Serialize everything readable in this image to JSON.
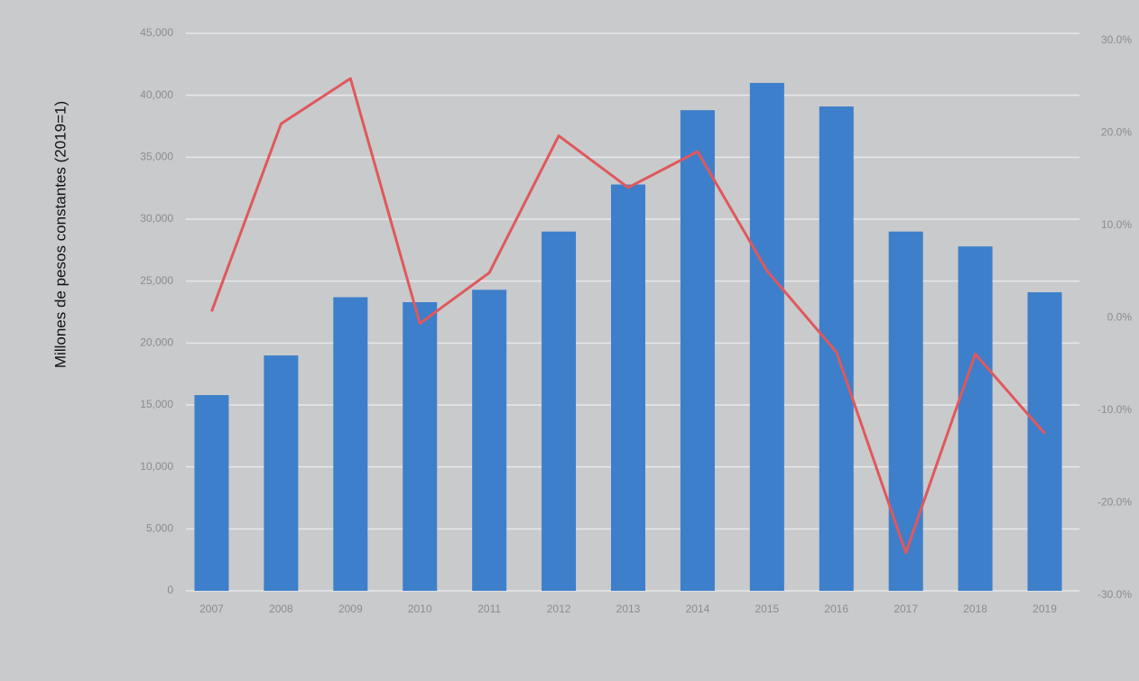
{
  "chart_data": {
    "type": "bar",
    "y_axis_label": "Millones de pesos constantes  (2019=1)",
    "categories": [
      "2007",
      "2008",
      "2009",
      "2010",
      "2011",
      "2012",
      "2013",
      "2014",
      "2015",
      "2016",
      "2017",
      "2018",
      "2019"
    ],
    "series": [
      {
        "type": "bar",
        "color": "#3d7fcb",
        "values": [
          15800,
          19000,
          23700,
          23300,
          24300,
          29000,
          32800,
          38800,
          41000,
          39100,
          29000,
          27800,
          24100
        ]
      },
      {
        "type": "line",
        "axis": "y2",
        "color": "#e0585c",
        "values": [
          0.7,
          21,
          25.9,
          -0.6,
          4.9,
          19.7,
          14.1,
          18,
          5.1,
          -3.7,
          -25.4,
          -3.9,
          -12.5
        ]
      }
    ],
    "ylim": [
      0,
      45000
    ],
    "yticks": [
      0,
      {
        "value": 5000,
        "label": "5,000"
      },
      {
        "value": 10000,
        "label": "10,000"
      },
      {
        "value": 15000,
        "label": "15,000"
      },
      {
        "value": 20000,
        "label": "20,000"
      },
      {
        "value": 25000,
        "label": "25,000"
      },
      {
        "value": 30000,
        "label": "30,000"
      },
      {
        "value": 35000,
        "label": "35,000"
      },
      {
        "value": 40000,
        "label": "40,000"
      },
      {
        "value": 45000,
        "label": "45,000"
      }
    ],
    "y2lim": [
      -30,
      30
    ],
    "y2ticks": [
      {
        "value": -30,
        "label": "-30.0%"
      },
      {
        "value": -20,
        "label": "-20.0%"
      },
      {
        "value": -10,
        "label": "-10.0%"
      },
      {
        "value": 0,
        "label": "0.0%"
      },
      {
        "value": 10,
        "label": "10.0%"
      },
      {
        "value": 20,
        "label": "20.0%"
      },
      {
        "value": 30,
        "label": "30.0%"
      }
    ],
    "grid": true
  }
}
